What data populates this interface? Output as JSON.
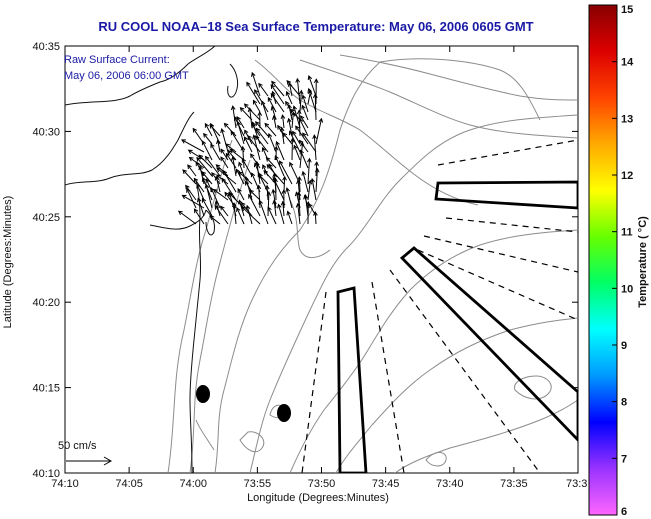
{
  "title": "RU COOL  NOAA–18  Sea Surface Temperature:  May 06, 2006 0605 GMT",
  "annotation": {
    "line1": "Raw Surface Current:",
    "line2": "May 06, 2006 06:00 GMT"
  },
  "scale_label": "50 cm/s",
  "x_axis": {
    "label": "Longitude (Degrees:Minutes)",
    "ticks": [
      "74:10",
      "74:05",
      "74:00",
      "73:55",
      "73:50",
      "73:45",
      "73:40",
      "73:35",
      "73:3"
    ]
  },
  "y_axis": {
    "label": "Latitude (Degrees:Minutes)",
    "ticks": [
      "40:35",
      "40:30",
      "40:25",
      "40:20",
      "40:15",
      "40:10"
    ]
  },
  "colorbar": {
    "label": "Temperature ( °C)",
    "ticks": [
      "15",
      "14",
      "13",
      "12",
      "11",
      "10",
      "9",
      "8",
      "7",
      "6"
    ],
    "colors": [
      "#ff66ff",
      "#9933ff",
      "#0000ff",
      "#0099ff",
      "#00ffff",
      "#00ff66",
      "#66ff00",
      "#ffff00",
      "#ffaa00",
      "#ff4400",
      "#dd0000",
      "#880000"
    ]
  },
  "map": {
    "land_color": "#ffffff",
    "contour_color": "#8c8c8c",
    "coastline_color": "#111111",
    "markers": 2
  }
}
